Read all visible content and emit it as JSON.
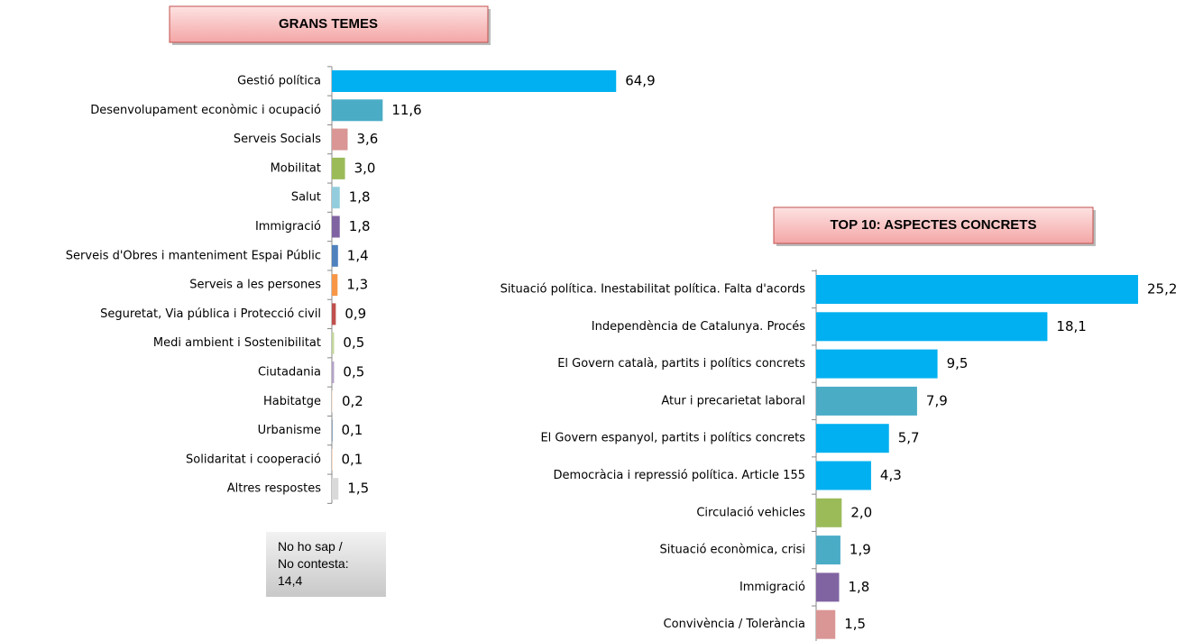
{
  "chart_data": [
    {
      "type": "bar",
      "title": "GRANS TEMES",
      "categories": [
        "Gestió política",
        "Desenvolupament econòmic i ocupació",
        "Serveis Socials",
        "Mobilitat",
        "Salut",
        "Immigració",
        "Serveis d'Obres i manteniment Espai Públic",
        "Serveis a les persones",
        "Seguretat, Via pública i Protecció civil",
        "Medi ambient i Sostenibilitat",
        "Ciutadania",
        "Habitatge",
        "Urbanisme",
        "Solidaritat i cooperació",
        "Altres respostes"
      ],
      "values": [
        64.9,
        11.6,
        3.6,
        3.0,
        1.8,
        1.8,
        1.4,
        1.3,
        0.9,
        0.5,
        0.5,
        0.2,
        0.1,
        0.1,
        1.5
      ],
      "value_labels": [
        "64,9",
        "11,6",
        "3,6",
        "3,0",
        "1,8",
        "1,8",
        "1,4",
        "1,3",
        "0,9",
        "0,5",
        "0,5",
        "0,2",
        "0,1",
        "0,1",
        "1,5"
      ],
      "colors": [
        "#00b0f0",
        "#4bacc6",
        "#d99694",
        "#9bbb59",
        "#93cddd",
        "#8064a2",
        "#4f81bd",
        "#f79646",
        "#c0504d",
        "#c3d69b",
        "#b3a2c7",
        "#fde9d9",
        "#1f497d",
        "#fac090",
        "#d9d9d9"
      ],
      "xlim": [
        0,
        70
      ],
      "annotation": [
        "No ho sap /",
        "No contesta:",
        "14,4"
      ]
    },
    {
      "type": "bar",
      "title": "TOP 10: ASPECTES CONCRETS",
      "categories": [
        "Situació política. Inestabilitat política. Falta d'acords",
        "Independència de Catalunya. Procés",
        "El Govern català, partits i polítics concrets",
        "Atur i precarietat laboral",
        "El Govern espanyol, partits i polítics concrets",
        "Democràcia i repressió política. Article 155",
        "Circulació vehicles",
        "Situació econòmica, crisi",
        "Immigració",
        "Convivència / Tolerància"
      ],
      "values": [
        25.2,
        18.1,
        9.5,
        7.9,
        5.7,
        4.3,
        2.0,
        1.9,
        1.8,
        1.5
      ],
      "value_labels": [
        "25,2",
        "18,1",
        "9,5",
        "7,9",
        "5,7",
        "4,3",
        "2,0",
        "1,9",
        "1,8",
        "1,5"
      ],
      "colors": [
        "#00b0f0",
        "#00b0f0",
        "#00b0f0",
        "#4bacc6",
        "#00b0f0",
        "#00b0f0",
        "#9bbb59",
        "#4bacc6",
        "#8064a2",
        "#d99694"
      ],
      "xlim": [
        0,
        30
      ]
    }
  ]
}
